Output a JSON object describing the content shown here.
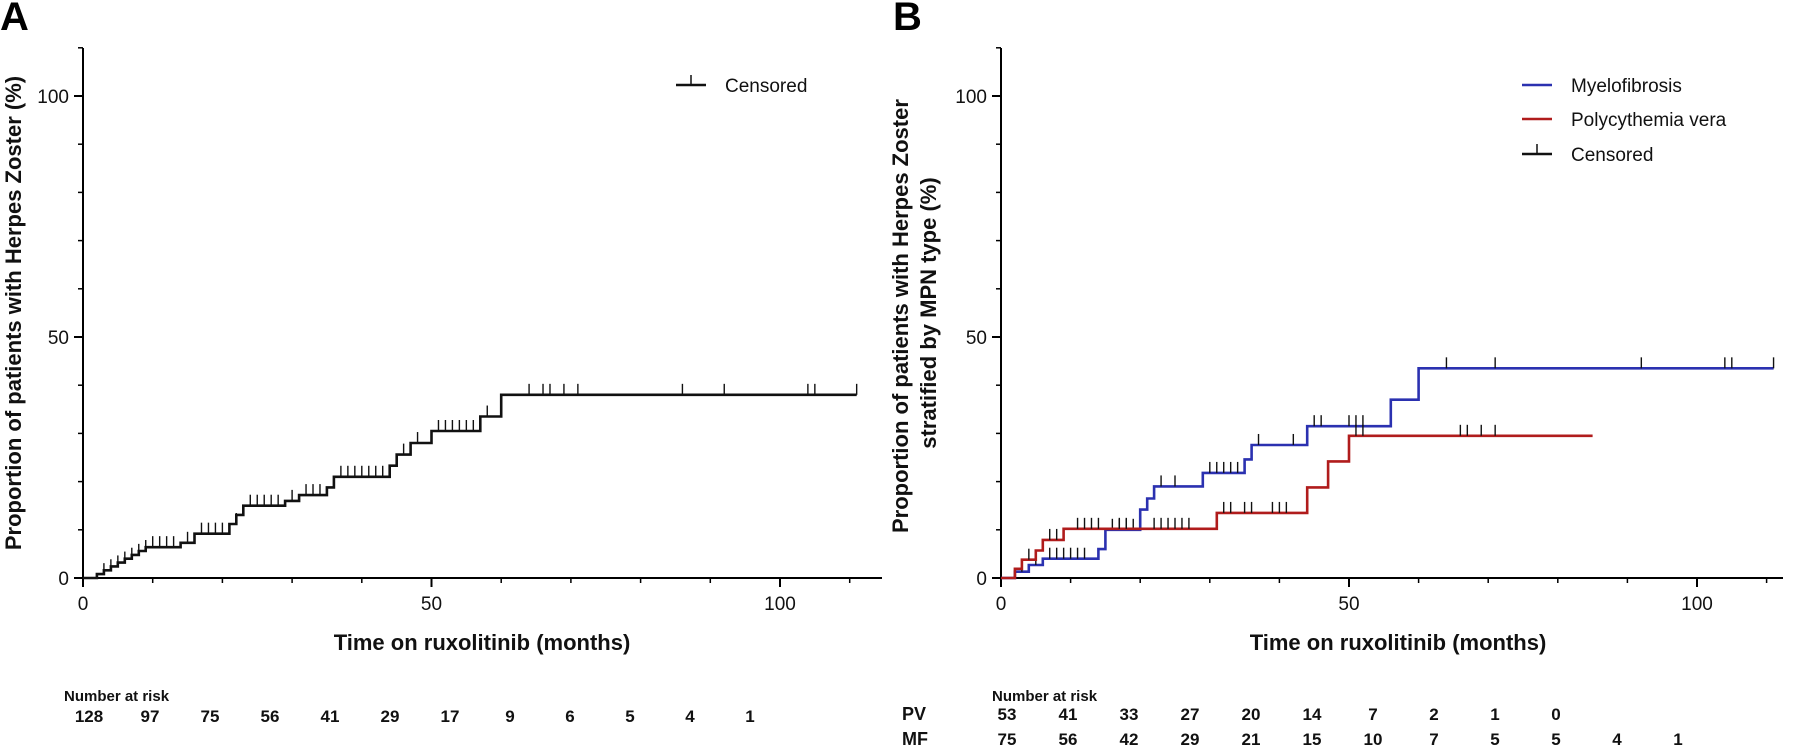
{
  "chart_data": [
    {
      "panel": "A",
      "type": "line",
      "xlabel": "Time on ruxolitinib (months)",
      "ylabel": "Proportion of patients with Herpes Zoster (%)",
      "xlim": [
        0,
        115
      ],
      "ylim": [
        0,
        110
      ],
      "xticks": [
        0,
        50,
        100
      ],
      "yticks": [
        0,
        50,
        100
      ],
      "legend": {
        "position": "top-right",
        "entries": [
          "Censored"
        ]
      },
      "series": [
        {
          "name": "",
          "color": "#111111",
          "steps": [
            [
              0,
              0
            ],
            [
              2,
              0
            ],
            [
              2,
              0.8
            ],
            [
              3,
              0.8
            ],
            [
              3,
              1.6
            ],
            [
              4,
              1.6
            ],
            [
              4,
              2.4
            ],
            [
              5,
              2.4
            ],
            [
              5,
              3.2
            ],
            [
              6,
              3.2
            ],
            [
              6,
              4.0
            ],
            [
              7,
              4.0
            ],
            [
              7,
              4.8
            ],
            [
              8,
              4.8
            ],
            [
              8,
              5.6
            ],
            [
              9,
              5.6
            ],
            [
              9,
              6.4
            ],
            [
              14,
              6.4
            ],
            [
              14,
              7.3
            ],
            [
              16,
              7.3
            ],
            [
              16,
              9.2
            ],
            [
              21,
              9.2
            ],
            [
              21,
              11.2
            ],
            [
              22,
              11.2
            ],
            [
              22,
              13.1
            ],
            [
              23,
              13.1
            ],
            [
              23,
              15.0
            ],
            [
              29,
              15.0
            ],
            [
              29,
              16.0
            ],
            [
              31,
              16.0
            ],
            [
              31,
              17.2
            ],
            [
              35,
              17.2
            ],
            [
              35,
              18.8
            ],
            [
              36,
              18.8
            ],
            [
              36,
              21.0
            ],
            [
              44,
              21.0
            ],
            [
              44,
              23.3
            ],
            [
              45,
              23.3
            ],
            [
              45,
              25.6
            ],
            [
              47,
              25.6
            ],
            [
              47,
              28.0
            ],
            [
              50,
              28.0
            ],
            [
              50,
              30.5
            ],
            [
              57,
              30.5
            ],
            [
              57,
              33.5
            ],
            [
              60,
              33.5
            ],
            [
              60,
              38.0
            ],
            [
              111,
              38.0
            ]
          ],
          "censored": [
            [
              3,
              0.8
            ],
            [
              4,
              1.6
            ],
            [
              5,
              2.4
            ],
            [
              6,
              3.2
            ],
            [
              7,
              4.0
            ],
            [
              8,
              4.8
            ],
            [
              9,
              5.6
            ],
            [
              10,
              6.4
            ],
            [
              11,
              6.4
            ],
            [
              12,
              6.4
            ],
            [
              13,
              6.4
            ],
            [
              15,
              7.3
            ],
            [
              17,
              9.2
            ],
            [
              18,
              9.2
            ],
            [
              19,
              9.2
            ],
            [
              20,
              9.2
            ],
            [
              22,
              11.2
            ],
            [
              24,
              15.0
            ],
            [
              25,
              15.0
            ],
            [
              26,
              15.0
            ],
            [
              27,
              15.0
            ],
            [
              28,
              15.0
            ],
            [
              30,
              16.0
            ],
            [
              32,
              17.2
            ],
            [
              33,
              17.2
            ],
            [
              34,
              17.2
            ],
            [
              37,
              21.0
            ],
            [
              38,
              21.0
            ],
            [
              39,
              21.0
            ],
            [
              40,
              21.0
            ],
            [
              41,
              21.0
            ],
            [
              42,
              21.0
            ],
            [
              43,
              21.0
            ],
            [
              46,
              25.6
            ],
            [
              48,
              28.0
            ],
            [
              51,
              30.5
            ],
            [
              52,
              30.5
            ],
            [
              53,
              30.5
            ],
            [
              54,
              30.5
            ],
            [
              55,
              30.5
            ],
            [
              56,
              30.5
            ],
            [
              58,
              33.5
            ],
            [
              64,
              38.0
            ],
            [
              66,
              38.0
            ],
            [
              67,
              38.0
            ],
            [
              69,
              38.0
            ],
            [
              71,
              38.0
            ],
            [
              86,
              38.0
            ],
            [
              92,
              38.0
            ],
            [
              104,
              38.0
            ],
            [
              105,
              38.0
            ],
            [
              111,
              38.0
            ]
          ]
        }
      ],
      "risk_table": {
        "title": "Number at risk",
        "times": [
          0,
          10,
          20,
          30,
          40,
          50,
          60,
          70,
          80,
          90,
          100,
          110
        ],
        "rows": [
          {
            "label": "",
            "values": [
              "128",
              "97",
              "75",
              "56",
              "41",
              "29",
              "17",
              "9",
              "6",
              "5",
              "4",
              "1"
            ]
          }
        ]
      }
    },
    {
      "panel": "B",
      "type": "line",
      "xlabel": "Time on ruxolitinib (months)",
      "ylabel": "Proportion of patients with Herpes Zoster stratified by MPN type (%)",
      "xlim": [
        0,
        115
      ],
      "ylim": [
        0,
        110
      ],
      "xticks": [
        0,
        50,
        100
      ],
      "yticks": [
        0,
        50,
        100
      ],
      "legend": {
        "position": "top-right",
        "entries": [
          "Myelofibrosis",
          "Polycythemia vera",
          "Censored"
        ]
      },
      "series": [
        {
          "name": "Myelofibrosis",
          "color": "#2b31b0",
          "steps": [
            [
              0,
              0
            ],
            [
              2,
              0
            ],
            [
              2,
              1.3
            ],
            [
              4,
              1.3
            ],
            [
              4,
              2.7
            ],
            [
              6,
              2.7
            ],
            [
              6,
              4.0
            ],
            [
              14,
              4.0
            ],
            [
              14,
              6.0
            ],
            [
              15,
              6.0
            ],
            [
              15,
              10.0
            ],
            [
              20,
              10.0
            ],
            [
              20,
              14.2
            ],
            [
              21,
              14.2
            ],
            [
              21,
              16.5
            ],
            [
              22,
              16.5
            ],
            [
              22,
              19.0
            ],
            [
              29,
              19.0
            ],
            [
              29,
              21.8
            ],
            [
              35,
              21.8
            ],
            [
              35,
              24.6
            ],
            [
              36,
              24.6
            ],
            [
              36,
              27.6
            ],
            [
              44,
              27.6
            ],
            [
              44,
              31.5
            ],
            [
              56,
              31.5
            ],
            [
              56,
              37.0
            ],
            [
              60,
              37.0
            ],
            [
              60,
              43.5
            ],
            [
              111,
              43.5
            ]
          ],
          "censored": [
            [
              3,
              1.3
            ],
            [
              5,
              2.7
            ],
            [
              7,
              4.0
            ],
            [
              8,
              4.0
            ],
            [
              9,
              4.0
            ],
            [
              10,
              4.0
            ],
            [
              11,
              4.0
            ],
            [
              12,
              4.0
            ],
            [
              16,
              10.0
            ],
            [
              17,
              10.0
            ],
            [
              18,
              10.0
            ],
            [
              19,
              10.0
            ],
            [
              23,
              19.0
            ],
            [
              25,
              19.0
            ],
            [
              30,
              21.8
            ],
            [
              31,
              21.8
            ],
            [
              32,
              21.8
            ],
            [
              33,
              21.8
            ],
            [
              34,
              21.8
            ],
            [
              37,
              27.6
            ],
            [
              42,
              27.6
            ],
            [
              45,
              31.5
            ],
            [
              46,
              31.5
            ],
            [
              50,
              31.5
            ],
            [
              51,
              31.5
            ],
            [
              52,
              31.5
            ],
            [
              64,
              43.5
            ],
            [
              71,
              43.5
            ],
            [
              92,
              43.5
            ],
            [
              104,
              43.5
            ],
            [
              105,
              43.5
            ],
            [
              111,
              43.5
            ]
          ]
        },
        {
          "name": "Polycythemia vera",
          "color": "#b01c1c",
          "steps": [
            [
              0,
              0
            ],
            [
              2,
              0
            ],
            [
              2,
              1.9
            ],
            [
              3,
              1.9
            ],
            [
              3,
              3.8
            ],
            [
              5,
              3.8
            ],
            [
              5,
              5.7
            ],
            [
              6,
              5.7
            ],
            [
              6,
              7.9
            ],
            [
              9,
              7.9
            ],
            [
              9,
              10.2
            ],
            [
              31,
              10.2
            ],
            [
              31,
              13.5
            ],
            [
              44,
              13.5
            ],
            [
              44,
              18.8
            ],
            [
              47,
              18.8
            ],
            [
              47,
              24.2
            ],
            [
              50,
              24.2
            ],
            [
              50,
              29.5
            ],
            [
              85,
              29.5
            ]
          ],
          "censored": [
            [
              4,
              3.8
            ],
            [
              7,
              7.9
            ],
            [
              8,
              7.9
            ],
            [
              11,
              10.2
            ],
            [
              12,
              10.2
            ],
            [
              13,
              10.2
            ],
            [
              14,
              10.2
            ],
            [
              17,
              10.2
            ],
            [
              18,
              10.2
            ],
            [
              22,
              10.2
            ],
            [
              23,
              10.2
            ],
            [
              24,
              10.2
            ],
            [
              25,
              10.2
            ],
            [
              26,
              10.2
            ],
            [
              27,
              10.2
            ],
            [
              32,
              13.5
            ],
            [
              33,
              13.5
            ],
            [
              35,
              13.5
            ],
            [
              36,
              13.5
            ],
            [
              39,
              13.5
            ],
            [
              40,
              13.5
            ],
            [
              41,
              13.5
            ],
            [
              51,
              29.5
            ],
            [
              52,
              29.5
            ],
            [
              66,
              29.5
            ],
            [
              67,
              29.5
            ],
            [
              69,
              29.5
            ],
            [
              71,
              29.5
            ]
          ]
        }
      ],
      "risk_table": {
        "title": "Number at risk",
        "times": [
          0,
          10,
          20,
          30,
          40,
          50,
          60,
          70,
          80,
          90,
          100,
          110
        ],
        "rows": [
          {
            "label": "PV",
            "values": [
              "53",
              "41",
              "33",
              "27",
              "20",
              "14",
              "7",
              "2",
              "1",
              "0"
            ]
          },
          {
            "label": "MF",
            "values": [
              "75",
              "56",
              "42",
              "29",
              "21",
              "15",
              "10",
              "7",
              "5",
              "5",
              "4",
              "1"
            ]
          }
        ]
      }
    }
  ]
}
